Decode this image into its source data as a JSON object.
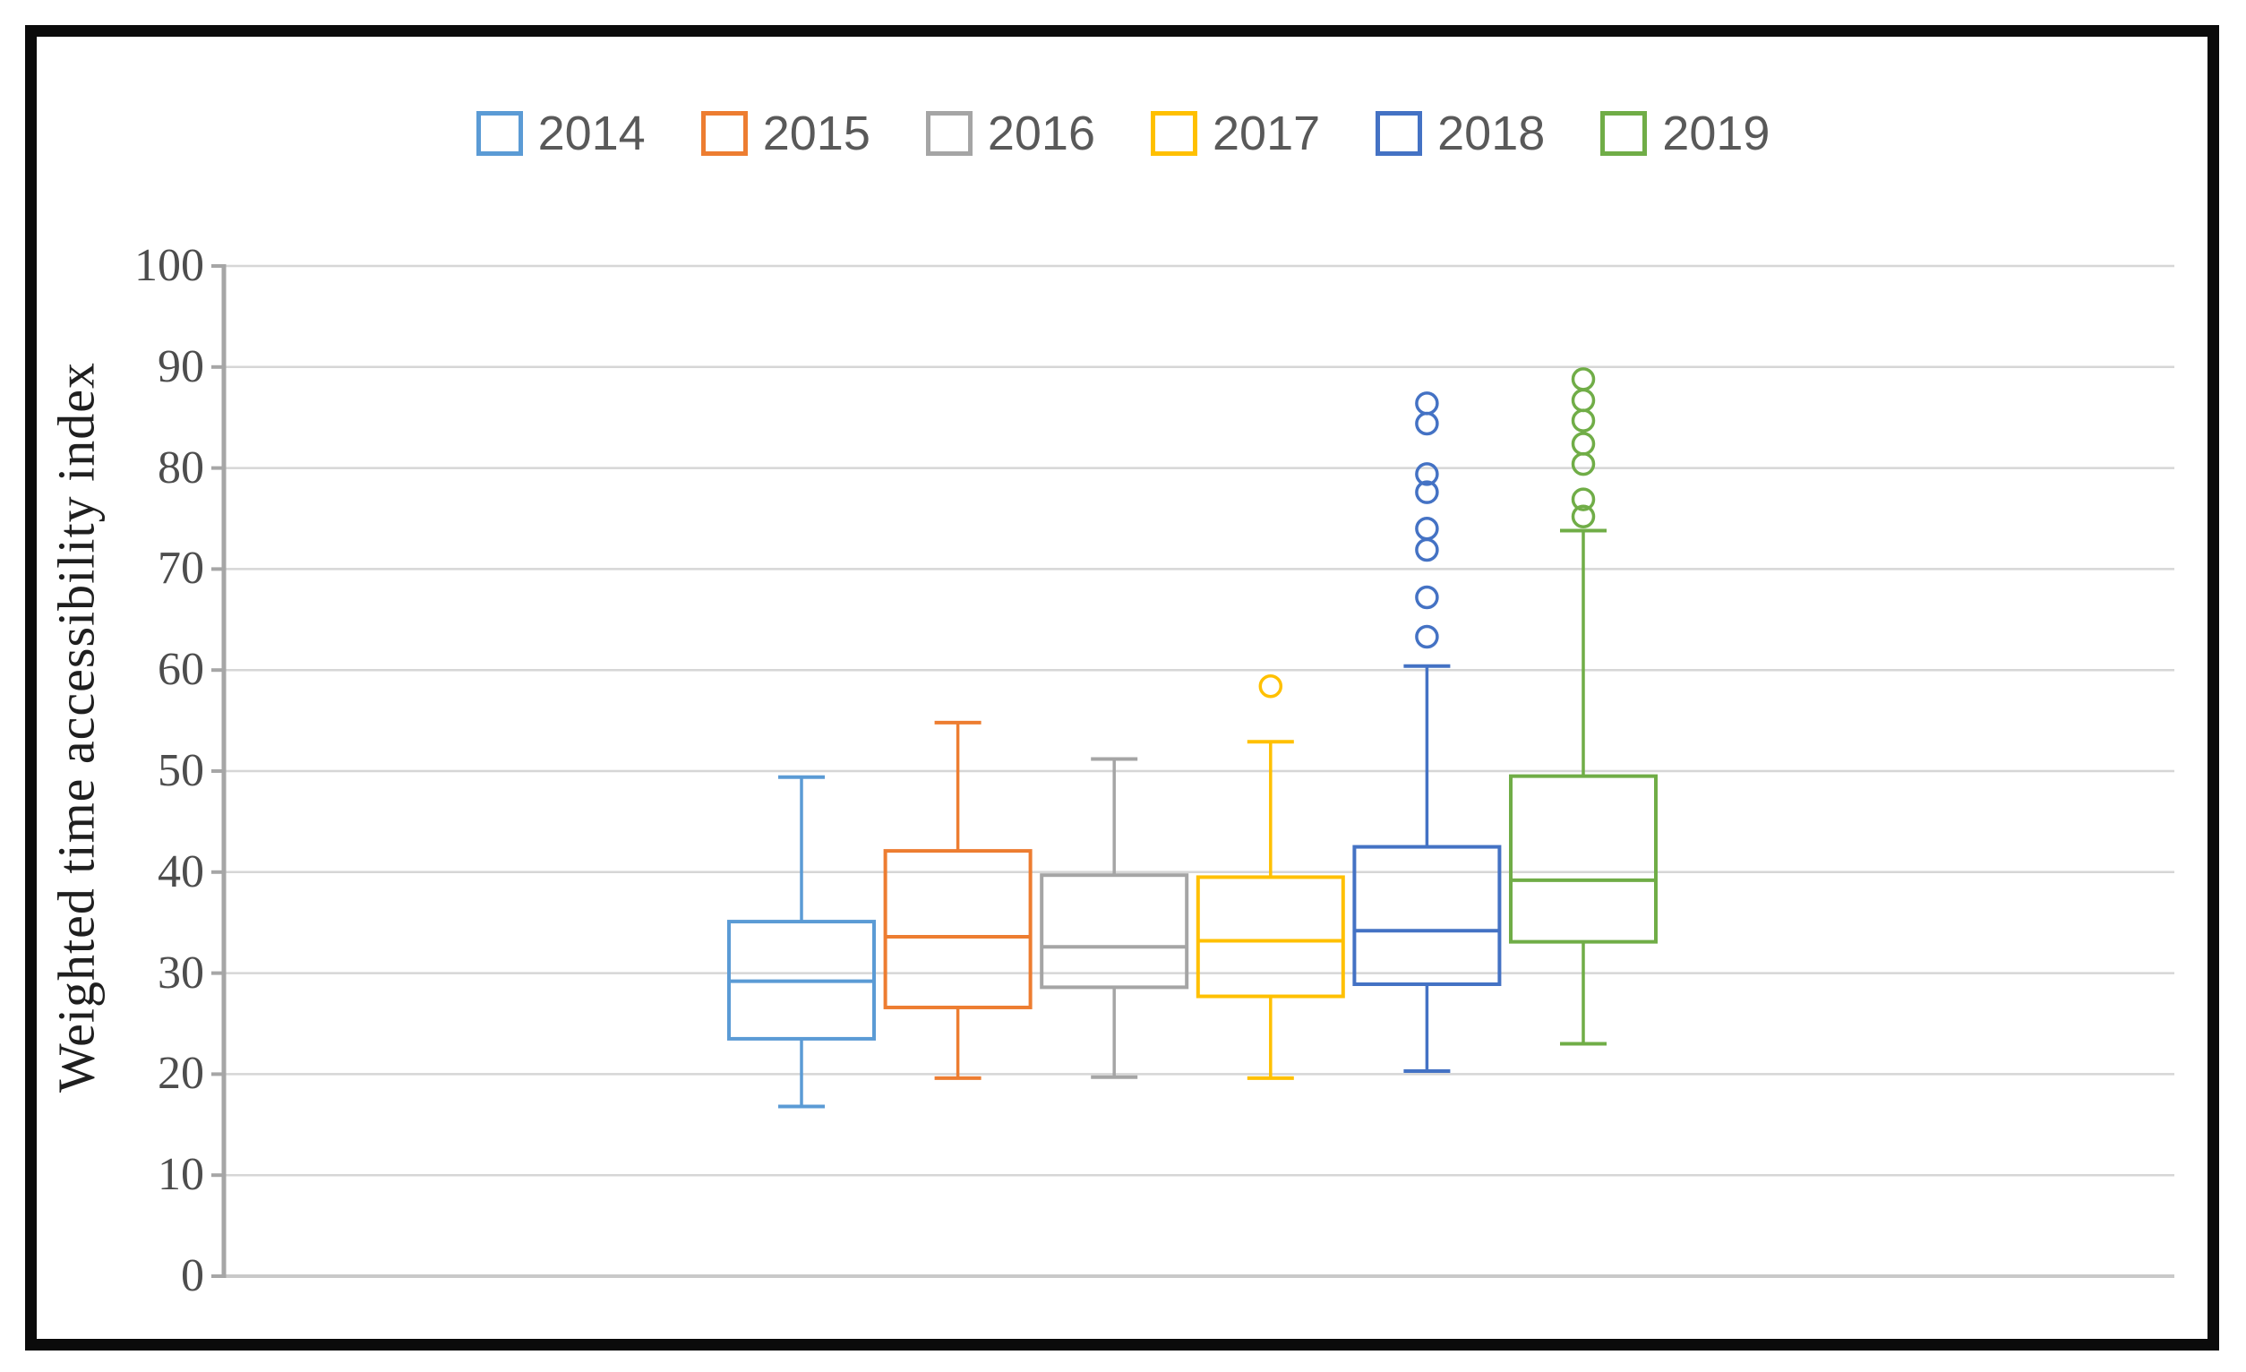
{
  "figure": {
    "background": "#ffffff",
    "border_color": "#0b0b0b"
  },
  "legend": {
    "position": "top",
    "items": [
      {
        "label": "2014",
        "color": "#5B9BD5"
      },
      {
        "label": "2015",
        "color": "#ED7D31"
      },
      {
        "label": "2016",
        "color": "#A5A5A5"
      },
      {
        "label": "2017",
        "color": "#FFC000"
      },
      {
        "label": "2018",
        "color": "#4472C4"
      },
      {
        "label": "2019",
        "color": "#70AD47"
      }
    ]
  },
  "chart_data": {
    "type": "boxplot",
    "title": "",
    "xlabel": "",
    "ylabel": "Weighted time accessibility index",
    "ylim": [
      0,
      100
    ],
    "yticks": [
      0,
      10,
      20,
      30,
      40,
      50,
      60,
      70,
      80,
      90,
      100
    ],
    "grid": true,
    "legend_position": "top",
    "gridline_color": "#D6D6D6",
    "axis_line_color": "#A6A6A6",
    "bottom_line_color": "#C9C9C9",
    "tick_label_color": "#4d4d4d",
    "series": [
      {
        "name": "2014",
        "color": "#5B9BD5",
        "min": 16.8,
        "q1": 23.5,
        "median": 29.2,
        "q3": 35.1,
        "max": 49.4,
        "outliers": []
      },
      {
        "name": "2015",
        "color": "#ED7D31",
        "min": 19.6,
        "q1": 26.6,
        "median": 33.6,
        "q3": 42.1,
        "max": 54.8,
        "outliers": []
      },
      {
        "name": "2016",
        "color": "#A5A5A5",
        "min": 19.7,
        "q1": 28.6,
        "median": 32.6,
        "q3": 39.7,
        "max": 51.2,
        "outliers": []
      },
      {
        "name": "2017",
        "color": "#FFC000",
        "min": 19.6,
        "q1": 27.7,
        "median": 33.2,
        "q3": 39.5,
        "max": 52.9,
        "outliers": [
          58.4
        ]
      },
      {
        "name": "2018",
        "color": "#4472C4",
        "min": 20.3,
        "q1": 28.9,
        "median": 34.2,
        "q3": 42.5,
        "max": 60.4,
        "outliers": [
          63.3,
          67.2,
          71.9,
          74.0,
          77.6,
          79.4,
          84.4,
          86.4
        ]
      },
      {
        "name": "2019",
        "color": "#70AD47",
        "min": 23.0,
        "q1": 33.1,
        "median": 39.2,
        "q3": 49.5,
        "max": 73.8,
        "outliers": [
          75.2,
          76.9,
          80.4,
          82.4,
          84.7,
          86.7,
          88.8
        ]
      }
    ]
  }
}
